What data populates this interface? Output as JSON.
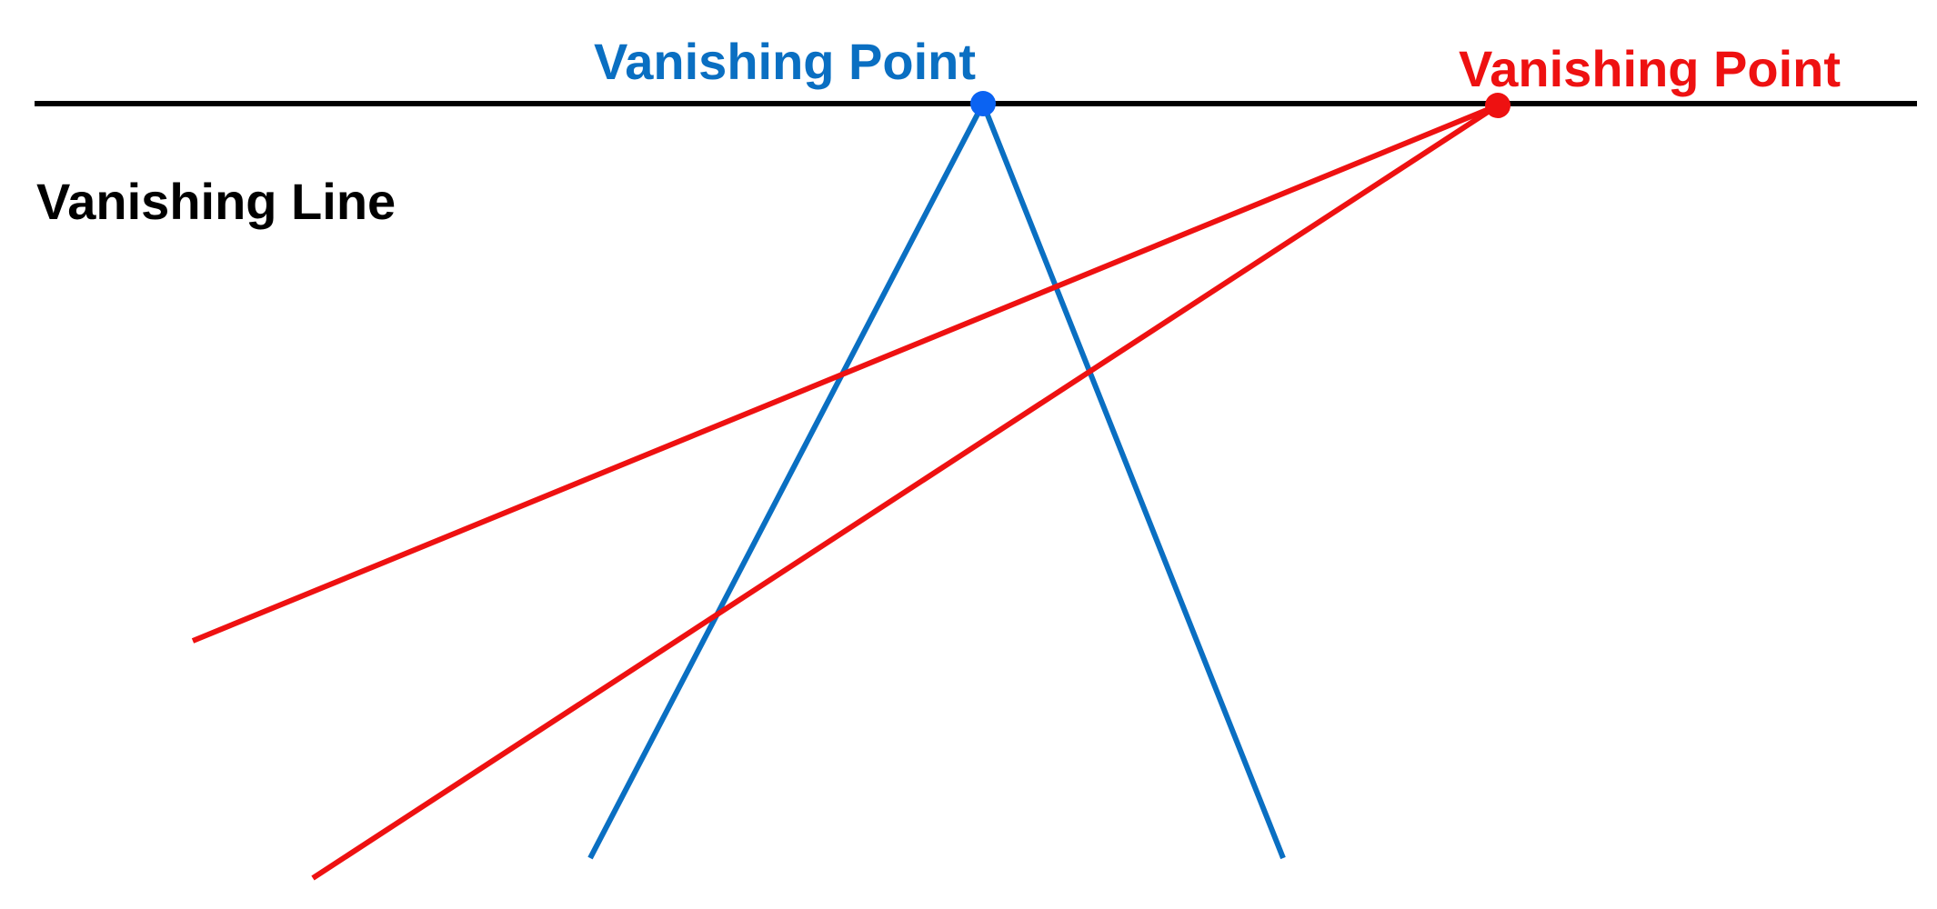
{
  "labels": {
    "vanishing_point_blue": "Vanishing Point",
    "vanishing_point_red": "Vanishing Point",
    "vanishing_line": "Vanishing Line"
  },
  "colors": {
    "horizon": "#000000",
    "blue_lines": "#0a6fc2",
    "blue_point": "#0b63f2",
    "red_lines": "#ee1111",
    "red_point": "#ee1111",
    "background": "#ffffff"
  }
}
